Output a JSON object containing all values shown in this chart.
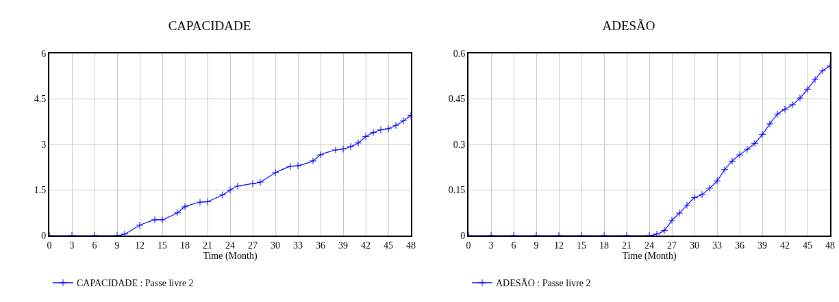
{
  "chart_data": [
    {
      "type": "line",
      "title": "CAPACIDADE",
      "xlabel": "Time (Month)",
      "x": [
        0,
        3,
        6,
        9,
        10,
        12,
        14,
        15,
        17,
        18,
        20,
        21,
        23,
        24,
        25,
        27,
        28,
        30,
        32,
        33,
        35,
        36,
        38,
        39,
        40,
        41,
        42,
        43,
        44,
        45,
        46,
        47,
        48
      ],
      "series": [
        {
          "name": "CAPACIDADE : Passe livre 2",
          "color": "#0000ff",
          "values": [
            0,
            0,
            0,
            0,
            0.05,
            0.34,
            0.52,
            0.52,
            0.75,
            0.95,
            1.1,
            1.12,
            1.34,
            1.5,
            1.63,
            1.71,
            1.76,
            2.07,
            2.28,
            2.3,
            2.46,
            2.66,
            2.82,
            2.85,
            2.93,
            3.05,
            3.26,
            3.39,
            3.48,
            3.52,
            3.63,
            3.78,
            3.96
          ]
        }
      ],
      "xlim": [
        0,
        48
      ],
      "xticks": [
        0,
        3,
        6,
        9,
        12,
        15,
        18,
        21,
        24,
        27,
        30,
        33,
        36,
        39,
        42,
        45,
        48
      ],
      "ylim": [
        0,
        6
      ],
      "yticks": [
        0,
        1.5,
        3,
        4.5,
        6
      ],
      "grid": true,
      "legend": "bottom",
      "marker": "cross"
    },
    {
      "type": "line",
      "title": "ADESÃO",
      "xlabel": "Time (Month)",
      "x": [
        0,
        3,
        6,
        9,
        12,
        15,
        18,
        21,
        24,
        25,
        26,
        27,
        28,
        29,
        30,
        31,
        32,
        33,
        34,
        35,
        36,
        37,
        38,
        39,
        40,
        41,
        42,
        43,
        44,
        45,
        46,
        47,
        48
      ],
      "series": [
        {
          "name": "ADESÃO : Passe livre 2",
          "color": "#0000ff",
          "values": [
            0,
            0,
            0,
            0,
            0,
            0,
            0,
            0,
            0,
            0.005,
            0.017,
            0.05,
            0.074,
            0.1,
            0.125,
            0.135,
            0.156,
            0.18,
            0.217,
            0.245,
            0.266,
            0.284,
            0.304,
            0.333,
            0.368,
            0.4,
            0.416,
            0.431,
            0.453,
            0.482,
            0.514,
            0.543,
            0.559
          ]
        }
      ],
      "xlim": [
        0,
        48
      ],
      "xticks": [
        0,
        3,
        6,
        9,
        12,
        15,
        18,
        21,
        24,
        27,
        30,
        33,
        36,
        39,
        42,
        45,
        48
      ],
      "ylim": [
        0,
        0.6
      ],
      "yticks": [
        0,
        0.15,
        0.3,
        0.45,
        0.6
      ],
      "grid": true,
      "legend": "bottom",
      "marker": "cross"
    }
  ]
}
